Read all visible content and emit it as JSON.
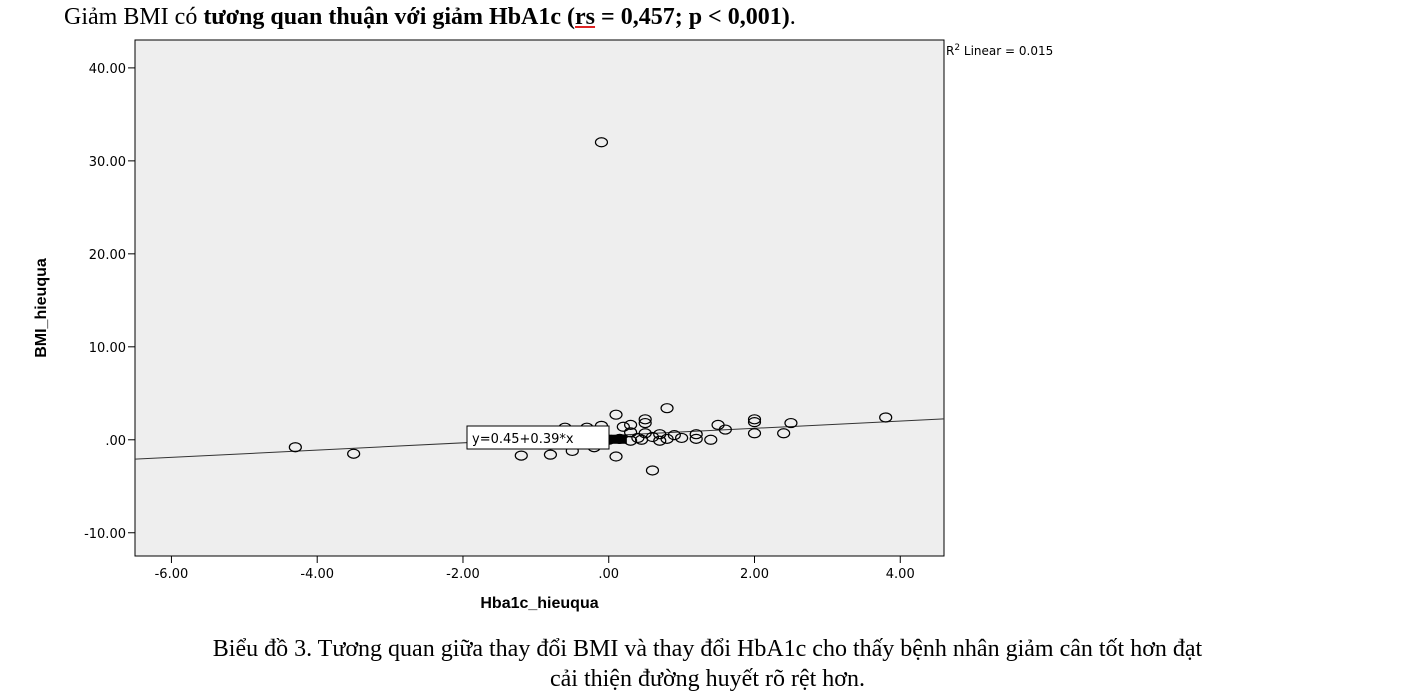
{
  "heading": {
    "prefix": "Giảm BMI có ",
    "bold_a": "tương quan thuận với giảm HbA1c (",
    "rs": "rs",
    "bold_b": " = 0,457; p < 0,001)",
    "suffix": "."
  },
  "caption": {
    "line1": "Biểu đồ 3. Tương quan giữa thay đổi BMI và thay đổi HbA1c cho thấy bệnh nhân giảm cân tốt hơn đạt",
    "line2": "cải thiện đường huyết rõ rệt hơn."
  },
  "chart_data": {
    "type": "scatter",
    "xlabel": "Hba1c_hieuqua",
    "ylabel": "BMI_hieuqua",
    "xlim": [
      -6.5,
      4.6
    ],
    "ylim": [
      -12.5,
      43
    ],
    "x_ticks": [
      -6,
      -4,
      -2,
      0,
      2,
      4
    ],
    "x_tick_labels": [
      "-6.00",
      "-4.00",
      "-2.00",
      ".00",
      "2.00",
      "4.00"
    ],
    "y_ticks": [
      -10,
      0,
      10,
      20,
      30,
      40
    ],
    "y_tick_labels": [
      "-10.00",
      ".00",
      "10.00",
      "20.00",
      "30.00",
      "40.00"
    ],
    "r2_label": "R",
    "r2_sup": "2",
    "r2_text": " Linear = 0.015",
    "fit_equation": "y=0.45+0.39*x",
    "fit": {
      "intercept": 0.45,
      "slope": 0.39
    },
    "plot_background": "#eeeeee",
    "points": [
      {
        "x": -0.1,
        "y": 32
      },
      {
        "x": -4.3,
        "y": -0.8
      },
      {
        "x": -3.5,
        "y": -1.5
      },
      {
        "x": -1.2,
        "y": -1.7
      },
      {
        "x": -0.8,
        "y": -1.6
      },
      {
        "x": -0.6,
        "y": 1.3
      },
      {
        "x": -0.5,
        "y": -1.2
      },
      {
        "x": -0.3,
        "y": 1.3
      },
      {
        "x": -0.2,
        "y": -0.8
      },
      {
        "x": -0.1,
        "y": 1.5
      },
      {
        "x": 0.1,
        "y": 2.7
      },
      {
        "x": 0.1,
        "y": -1.8
      },
      {
        "x": 0.2,
        "y": 1.4
      },
      {
        "x": 0.3,
        "y": 1.6
      },
      {
        "x": 0.3,
        "y": 0.8
      },
      {
        "x": 0.4,
        "y": 0.2
      },
      {
        "x": 0.5,
        "y": 1.8
      },
      {
        "x": 0.5,
        "y": 2.2
      },
      {
        "x": 0.5,
        "y": 0.7
      },
      {
        "x": 0.6,
        "y": 0.3
      },
      {
        "x": 0.6,
        "y": -3.3
      },
      {
        "x": 0.7,
        "y": 0.6
      },
      {
        "x": 0.8,
        "y": 3.4
      },
      {
        "x": 0.8,
        "y": 0.1
      },
      {
        "x": 0.9,
        "y": 0.5
      },
      {
        "x": 1.0,
        "y": 0.2
      },
      {
        "x": 1.2,
        "y": 0.6
      },
      {
        "x": 1.2,
        "y": 0.1
      },
      {
        "x": 1.4,
        "y": 0.0
      },
      {
        "x": 1.5,
        "y": 1.6
      },
      {
        "x": 1.6,
        "y": 1.1
      },
      {
        "x": 2.0,
        "y": 2.2
      },
      {
        "x": 2.0,
        "y": 1.9
      },
      {
        "x": 2.0,
        "y": 0.7
      },
      {
        "x": 2.4,
        "y": 0.7
      },
      {
        "x": 2.5,
        "y": 1.8
      },
      {
        "x": 3.8,
        "y": 2.4
      },
      {
        "x": 0.0,
        "y": 0.0
      },
      {
        "x": 0.15,
        "y": 0.1
      },
      {
        "x": 0.3,
        "y": -0.1
      },
      {
        "x": 0.45,
        "y": 0.0
      },
      {
        "x": 0.7,
        "y": -0.1
      }
    ]
  }
}
